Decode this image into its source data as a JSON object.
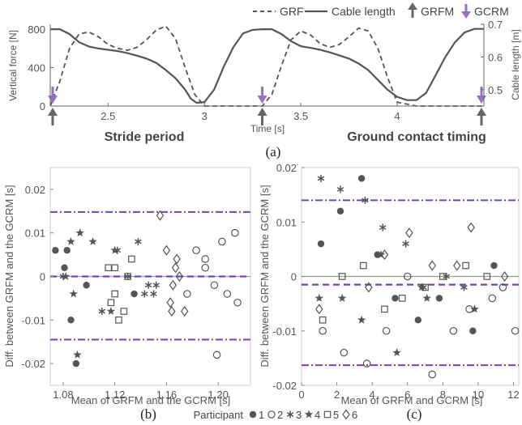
{
  "top_legend": {
    "grf_label": "GRF",
    "cable_label": "Cable length",
    "grfm_label": "GRFM",
    "gcrm_label": "GCRM"
  },
  "panel_a": {
    "caption": "(a)",
    "note_left": "Stride period",
    "note_right": "Ground contact timing"
  },
  "panel_b": {
    "caption": "(b)"
  },
  "panel_c": {
    "caption": "(c)"
  },
  "participant_legend": {
    "title": "Participant",
    "items": [
      {
        "label": "1",
        "marker": "filled-circle"
      },
      {
        "label": "2",
        "marker": "open-circle"
      },
      {
        "label": "3",
        "marker": "asterisk"
      },
      {
        "label": "4",
        "marker": "filled-star"
      },
      {
        "label": "5",
        "marker": "open-square"
      },
      {
        "label": "6",
        "marker": "open-diamond"
      }
    ]
  },
  "colors": {
    "accent_purple": "#9b6fc0",
    "loa_purple": "#7b3fb0",
    "grfm_arrow": "#666666",
    "line": "#555555"
  },
  "chart_data": [
    {
      "id": "a",
      "type": "line",
      "xlabel": "Time [s]",
      "ylabel": "Vertical force [N]",
      "y2label": "Cable length [m]",
      "xlim": [
        2.2,
        4.45
      ],
      "ylim": [
        0,
        850
      ],
      "y2lim": [
        0.45,
        0.7
      ],
      "xticks": [
        "2.5",
        "3",
        "3.5",
        "4"
      ],
      "xtick_values": [
        2.5,
        3,
        3.5,
        4
      ],
      "yticks": [
        "0",
        "400",
        "800"
      ],
      "ytick_values": [
        0,
        400,
        800
      ],
      "y2ticks": [
        "0.5",
        "0.6",
        "0.7"
      ],
      "y2tick_values": [
        0.5,
        0.6,
        0.7
      ],
      "series": [
        {
          "name": "GRF",
          "style": "dashed",
          "axis": "left",
          "x": [
            2.2,
            2.25,
            2.3,
            2.35,
            2.4,
            2.45,
            2.5,
            2.55,
            2.6,
            2.65,
            2.7,
            2.75,
            2.8,
            2.85,
            2.9,
            2.95,
            3.0,
            3.1,
            3.2,
            3.25,
            3.3,
            3.35,
            3.4,
            3.45,
            3.5,
            3.55,
            3.6,
            3.65,
            3.7,
            3.75,
            3.8,
            3.85,
            3.9,
            3.95,
            4.0,
            4.1,
            4.2,
            4.3,
            4.45
          ],
          "y": [
            0,
            260,
            600,
            750,
            770,
            720,
            640,
            600,
            580,
            610,
            690,
            790,
            830,
            700,
            400,
            120,
            0,
            0,
            0,
            0,
            0,
            120,
            420,
            690,
            780,
            740,
            650,
            610,
            640,
            720,
            810,
            780,
            600,
            300,
            40,
            0,
            0,
            0,
            0
          ]
        },
        {
          "name": "Cable length",
          "style": "solid",
          "axis": "right",
          "x": [
            2.2,
            2.25,
            2.3,
            2.35,
            2.4,
            2.45,
            2.5,
            2.55,
            2.6,
            2.65,
            2.7,
            2.75,
            2.8,
            2.85,
            2.9,
            2.93,
            2.96,
            3.0,
            3.05,
            3.1,
            3.15,
            3.2,
            3.25,
            3.3,
            3.35,
            3.4,
            3.45,
            3.5,
            3.55,
            3.6,
            3.65,
            3.7,
            3.75,
            3.8,
            3.85,
            3.9,
            3.95,
            4.0,
            4.05,
            4.1,
            4.15,
            4.2,
            4.25,
            4.3,
            4.35,
            4.4,
            4.45
          ],
          "y": [
            0.685,
            0.685,
            0.67,
            0.645,
            0.632,
            0.626,
            0.622,
            0.618,
            0.612,
            0.604,
            0.595,
            0.582,
            0.56,
            0.535,
            0.5,
            0.472,
            0.46,
            0.462,
            0.5,
            0.57,
            0.63,
            0.672,
            0.683,
            0.685,
            0.685,
            0.67,
            0.648,
            0.633,
            0.628,
            0.622,
            0.614,
            0.605,
            0.595,
            0.58,
            0.56,
            0.53,
            0.5,
            0.478,
            0.468,
            0.468,
            0.49,
            0.545,
            0.6,
            0.645,
            0.675,
            0.686,
            0.686
          ]
        }
      ],
      "events": {
        "grfm_x": [
          2.2,
          3.3,
          4.45
        ],
        "gcrm_x": [
          2.2,
          3.3,
          4.45
        ]
      }
    },
    {
      "id": "b",
      "type": "scatter",
      "xlabel": "Mean of GRFM and the GCRM [s]",
      "ylabel": "Diff. between GRFM and the GCRM [s]",
      "xlim": [
        1.07,
        1.225
      ],
      "ylim": [
        -0.025,
        0.025
      ],
      "xticks": [
        "1.08",
        "1.12",
        "1.16",
        "1.20"
      ],
      "xtick_values": [
        1.08,
        1.12,
        1.16,
        1.2
      ],
      "yticks": [
        "-0.02",
        "-0.01",
        "0",
        "0.01",
        "0.02"
      ],
      "ytick_values": [
        -0.02,
        -0.01,
        0,
        0.01,
        0.02
      ],
      "zero_line": 0,
      "mean_line": 0,
      "loa_upper": 0.0148,
      "loa_lower": -0.0145,
      "points": [
        {
          "p": 1,
          "x": 1.074,
          "y": 0.006
        },
        {
          "p": 1,
          "x": 1.083,
          "y": 0.006
        },
        {
          "p": 1,
          "x": 1.081,
          "y": 0.002
        },
        {
          "p": 1,
          "x": 1.086,
          "y": -0.01
        },
        {
          "p": 1,
          "x": 1.09,
          "y": -0.02
        },
        {
          "p": 1,
          "x": 1.098,
          "y": -0.002
        },
        {
          "p": 3,
          "x": 1.08,
          "y": 0.0
        },
        {
          "p": 3,
          "x": 1.11,
          "y": -0.008
        },
        {
          "p": 3,
          "x": 1.122,
          "y": 0.006
        },
        {
          "p": 3,
          "x": 1.13,
          "y": 0.0
        },
        {
          "p": 3,
          "x": 1.138,
          "y": 0.008
        },
        {
          "p": 3,
          "x": 1.143,
          "y": -0.004
        },
        {
          "p": 3,
          "x": 1.146,
          "y": -0.002
        },
        {
          "p": 3,
          "x": 1.15,
          "y": -0.004
        },
        {
          "p": 3,
          "x": 1.152,
          "y": -0.002
        },
        {
          "p": 4,
          "x": 1.082,
          "y": 0.0
        },
        {
          "p": 4,
          "x": 1.086,
          "y": 0.008
        },
        {
          "p": 4,
          "x": 1.088,
          "y": -0.004
        },
        {
          "p": 4,
          "x": 1.091,
          "y": -0.018
        },
        {
          "p": 4,
          "x": 1.093,
          "y": 0.01
        },
        {
          "p": 4,
          "x": 1.103,
          "y": 0.008
        },
        {
          "p": 4,
          "x": 1.117,
          "y": -0.008
        },
        {
          "p": 4,
          "x": 1.12,
          "y": 0.006
        },
        {
          "p": 5,
          "x": 1.115,
          "y": 0.002
        },
        {
          "p": 5,
          "x": 1.117,
          "y": -0.006
        },
        {
          "p": 5,
          "x": 1.12,
          "y": 0.002
        },
        {
          "p": 5,
          "x": 1.123,
          "y": -0.01
        },
        {
          "p": 5,
          "x": 1.127,
          "y": -0.008
        },
        {
          "p": 5,
          "x": 1.13,
          "y": 0.0
        },
        {
          "p": 5,
          "x": 1.133,
          "y": 0.004
        },
        {
          "p": 5,
          "x": 1.12,
          "y": -0.004
        },
        {
          "p": 2,
          "x": 1.176,
          "y": -0.004
        },
        {
          "p": 2,
          "x": 1.183,
          "y": 0.006
        },
        {
          "p": 2,
          "x": 1.19,
          "y": 0.002
        },
        {
          "p": 2,
          "x": 1.19,
          "y": 0.004
        },
        {
          "p": 2,
          "x": 1.197,
          "y": -0.002
        },
        {
          "p": 2,
          "x": 1.199,
          "y": -0.018
        },
        {
          "p": 2,
          "x": 1.203,
          "y": 0.008
        },
        {
          "p": 2,
          "x": 1.207,
          "y": -0.004
        },
        {
          "p": 2,
          "x": 1.213,
          "y": 0.01
        },
        {
          "p": 2,
          "x": 1.215,
          "y": -0.006
        },
        {
          "p": 6,
          "x": 1.155,
          "y": 0.014
        },
        {
          "p": 6,
          "x": 1.16,
          "y": 0.006
        },
        {
          "p": 6,
          "x": 1.163,
          "y": -0.006
        },
        {
          "p": 6,
          "x": 1.165,
          "y": -0.002
        },
        {
          "p": 6,
          "x": 1.167,
          "y": 0.002
        },
        {
          "p": 6,
          "x": 1.168,
          "y": 0.004
        },
        {
          "p": 6,
          "x": 1.17,
          "y": 0.0
        },
        {
          "p": 6,
          "x": 1.174,
          "y": -0.008
        },
        {
          "p": 6,
          "x": 1.164,
          "y": -0.008
        },
        {
          "p": 1,
          "x": 1.135,
          "y": -0.004
        }
      ]
    },
    {
      "id": "c",
      "type": "scatter",
      "xlabel": "Mean of GRFM and GCRM [s]",
      "ylabel": "Diff. between GRFM and the GCRM [s]",
      "xlim": [
        0,
        12.3
      ],
      "ylim": [
        -0.02,
        0.02
      ],
      "xticks": [
        "0",
        "2",
        "4",
        "6",
        "8",
        "10",
        "12"
      ],
      "xtick_values": [
        0,
        2,
        4,
        6,
        8,
        10,
        12
      ],
      "yticks": [
        "-0.02",
        "-0.01",
        "0",
        "0.01",
        "0.02"
      ],
      "ytick_values": [
        -0.02,
        -0.01,
        0,
        0.01,
        0.02
      ],
      "zero_line": 0,
      "mean_line": -0.0015,
      "loa_upper": 0.014,
      "loa_lower": -0.0163,
      "points": [
        {
          "p": 1,
          "x": 1.1,
          "y": 0.006
        },
        {
          "p": 1,
          "x": 2.2,
          "y": 0.012
        },
        {
          "p": 1,
          "x": 3.4,
          "y": 0.018
        },
        {
          "p": 1,
          "x": 4.3,
          "y": 0.004
        },
        {
          "p": 1,
          "x": 5.3,
          "y": -0.004
        },
        {
          "p": 1,
          "x": 6.6,
          "y": -0.008
        },
        {
          "p": 1,
          "x": 7.8,
          "y": -0.004
        },
        {
          "p": 1,
          "x": 9.7,
          "y": -0.01
        },
        {
          "p": 1,
          "x": 10.9,
          "y": 0.002
        },
        {
          "p": 2,
          "x": 1.2,
          "y": -0.01
        },
        {
          "p": 2,
          "x": 2.4,
          "y": -0.014
        },
        {
          "p": 2,
          "x": 3.7,
          "y": -0.016
        },
        {
          "p": 2,
          "x": 4.8,
          "y": -0.01
        },
        {
          "p": 2,
          "x": 6.0,
          "y": 0.0
        },
        {
          "p": 2,
          "x": 7.4,
          "y": -0.018
        },
        {
          "p": 2,
          "x": 8.6,
          "y": -0.01
        },
        {
          "p": 2,
          "x": 9.5,
          "y": -0.006
        },
        {
          "p": 2,
          "x": 10.8,
          "y": -0.004
        },
        {
          "p": 2,
          "x": 12.1,
          "y": -0.01
        },
        {
          "p": 2,
          "x": 11.4,
          "y": -0.002
        },
        {
          "p": 3,
          "x": 1.1,
          "y": 0.018
        },
        {
          "p": 3,
          "x": 2.2,
          "y": 0.016
        },
        {
          "p": 3,
          "x": 3.6,
          "y": 0.014
        },
        {
          "p": 3,
          "x": 4.6,
          "y": 0.009
        },
        {
          "p": 3,
          "x": 5.9,
          "y": 0.006
        },
        {
          "p": 3,
          "x": 6.9,
          "y": -0.002
        },
        {
          "p": 3,
          "x": 8.2,
          "y": 0.0
        },
        {
          "p": 3,
          "x": 9.2,
          "y": -0.002
        },
        {
          "p": 4,
          "x": 1.0,
          "y": -0.004
        },
        {
          "p": 4,
          "x": 2.3,
          "y": -0.004
        },
        {
          "p": 4,
          "x": 3.4,
          "y": -0.008
        },
        {
          "p": 4,
          "x": 4.5,
          "y": 0.004
        },
        {
          "p": 4,
          "x": 5.4,
          "y": -0.014
        },
        {
          "p": 4,
          "x": 6.8,
          "y": -0.002
        },
        {
          "p": 4,
          "x": 7.1,
          "y": -0.004
        },
        {
          "p": 4,
          "x": 9.8,
          "y": -0.006
        },
        {
          "p": 5,
          "x": 1.2,
          "y": -0.008
        },
        {
          "p": 5,
          "x": 2.3,
          "y": 0.0
        },
        {
          "p": 5,
          "x": 3.5,
          "y": 0.002
        },
        {
          "p": 5,
          "x": 4.7,
          "y": -0.006
        },
        {
          "p": 5,
          "x": 5.7,
          "y": -0.004
        },
        {
          "p": 5,
          "x": 7.0,
          "y": -0.002
        },
        {
          "p": 5,
          "x": 8.0,
          "y": 0.0
        },
        {
          "p": 5,
          "x": 9.3,
          "y": 0.002
        },
        {
          "p": 5,
          "x": 10.5,
          "y": 0.0
        },
        {
          "p": 6,
          "x": 1.0,
          "y": -0.006
        },
        {
          "p": 6,
          "x": 3.8,
          "y": -0.002
        },
        {
          "p": 6,
          "x": 4.7,
          "y": 0.004
        },
        {
          "p": 6,
          "x": 6.1,
          "y": 0.008
        },
        {
          "p": 6,
          "x": 7.4,
          "y": 0.002
        },
        {
          "p": 6,
          "x": 8.8,
          "y": 0.002
        },
        {
          "p": 6,
          "x": 9.6,
          "y": 0.009
        },
        {
          "p": 6,
          "x": 11.5,
          "y": 0.0
        }
      ]
    }
  ]
}
